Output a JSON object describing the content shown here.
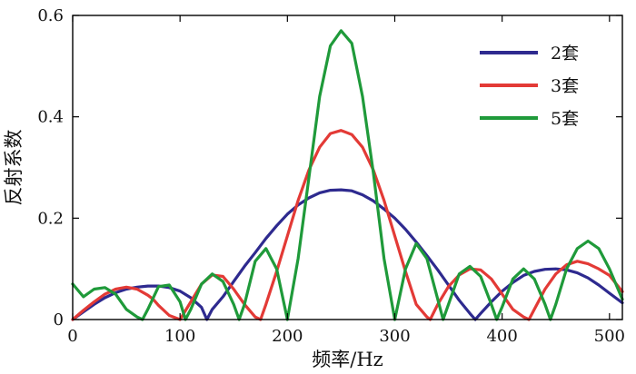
{
  "chart_data": {
    "type": "line",
    "xlabel": "频率/Hz",
    "ylabel": "反射系数",
    "xlim": [
      0,
      512
    ],
    "ylim": [
      0,
      0.6
    ],
    "x_ticks": [
      0,
      100,
      200,
      300,
      400,
      500
    ],
    "x_tick_labels": [
      "0",
      "100",
      "200",
      "300",
      "400",
      "500"
    ],
    "y_ticks": [
      0,
      0.2,
      0.4,
      0.6
    ],
    "y_tick_labels": [
      "0",
      "0.2",
      "0.4",
      "0.6"
    ],
    "grid": false,
    "legend_position": "top-right",
    "series": [
      {
        "name": "2套",
        "color": "#2e2a8f",
        "x": [
          0,
          10,
          20,
          30,
          40,
          50,
          60,
          70,
          80,
          90,
          100,
          110,
          120,
          125,
          130,
          140,
          150,
          160,
          170,
          180,
          190,
          200,
          210,
          220,
          230,
          240,
          250,
          260,
          270,
          280,
          290,
          300,
          310,
          320,
          330,
          340,
          350,
          360,
          370,
          375,
          380,
          390,
          400,
          410,
          420,
          430,
          440,
          450,
          460,
          470,
          480,
          490,
          500,
          512
        ],
        "values": [
          0.0,
          0.015,
          0.03,
          0.043,
          0.053,
          0.06,
          0.064,
          0.066,
          0.066,
          0.063,
          0.056,
          0.043,
          0.024,
          0.0,
          0.02,
          0.045,
          0.075,
          0.105,
          0.132,
          0.16,
          0.185,
          0.208,
          0.226,
          0.24,
          0.25,
          0.255,
          0.256,
          0.254,
          0.246,
          0.234,
          0.218,
          0.2,
          0.178,
          0.153,
          0.126,
          0.098,
          0.068,
          0.038,
          0.012,
          0.0,
          0.012,
          0.035,
          0.056,
          0.073,
          0.087,
          0.095,
          0.099,
          0.1,
          0.098,
          0.092,
          0.082,
          0.068,
          0.052,
          0.033
        ]
      },
      {
        "name": "3套",
        "color": "#e33a36",
        "x": [
          0,
          10,
          20,
          30,
          40,
          50,
          60,
          70,
          75,
          80,
          90,
          100,
          110,
          120,
          130,
          140,
          150,
          160,
          170,
          175,
          180,
          190,
          200,
          210,
          220,
          230,
          240,
          250,
          260,
          270,
          280,
          290,
          300,
          310,
          320,
          330,
          333,
          340,
          350,
          360,
          370,
          380,
          390,
          400,
          410,
          420,
          425,
          430,
          440,
          450,
          460,
          470,
          480,
          490,
          500,
          512
        ],
        "values": [
          0.0,
          0.018,
          0.035,
          0.05,
          0.06,
          0.064,
          0.06,
          0.048,
          0.04,
          0.028,
          0.008,
          0.0,
          0.035,
          0.07,
          0.088,
          0.085,
          0.06,
          0.03,
          0.005,
          0.0,
          0.03,
          0.095,
          0.165,
          0.235,
          0.295,
          0.34,
          0.367,
          0.373,
          0.365,
          0.34,
          0.295,
          0.235,
          0.165,
          0.095,
          0.03,
          0.005,
          0.0,
          0.03,
          0.065,
          0.088,
          0.1,
          0.098,
          0.08,
          0.05,
          0.02,
          0.005,
          0.0,
          0.02,
          0.06,
          0.09,
          0.108,
          0.115,
          0.11,
          0.1,
          0.087,
          0.055
        ]
      },
      {
        "name": "5套",
        "color": "#1f9a3a",
        "x": [
          0,
          10,
          20,
          30,
          40,
          50,
          60,
          65,
          70,
          80,
          90,
          100,
          105,
          110,
          120,
          130,
          140,
          150,
          155,
          160,
          170,
          180,
          190,
          200,
          210,
          220,
          230,
          240,
          250,
          260,
          270,
          280,
          290,
          300,
          310,
          320,
          330,
          340,
          345,
          350,
          360,
          370,
          380,
          390,
          395,
          400,
          410,
          420,
          430,
          440,
          445,
          450,
          460,
          470,
          480,
          490,
          500,
          512
        ],
        "values": [
          0.07,
          0.045,
          0.06,
          0.063,
          0.05,
          0.02,
          0.005,
          0.0,
          0.02,
          0.065,
          0.068,
          0.035,
          0.0,
          0.02,
          0.07,
          0.09,
          0.075,
          0.03,
          0.0,
          0.03,
          0.115,
          0.14,
          0.1,
          0.0,
          0.12,
          0.28,
          0.44,
          0.54,
          0.57,
          0.545,
          0.44,
          0.29,
          0.12,
          0.0,
          0.1,
          0.15,
          0.12,
          0.04,
          0.0,
          0.03,
          0.09,
          0.105,
          0.085,
          0.03,
          0.0,
          0.025,
          0.08,
          0.1,
          0.08,
          0.03,
          0.0,
          0.03,
          0.1,
          0.14,
          0.155,
          0.14,
          0.1,
          0.04
        ]
      }
    ]
  }
}
